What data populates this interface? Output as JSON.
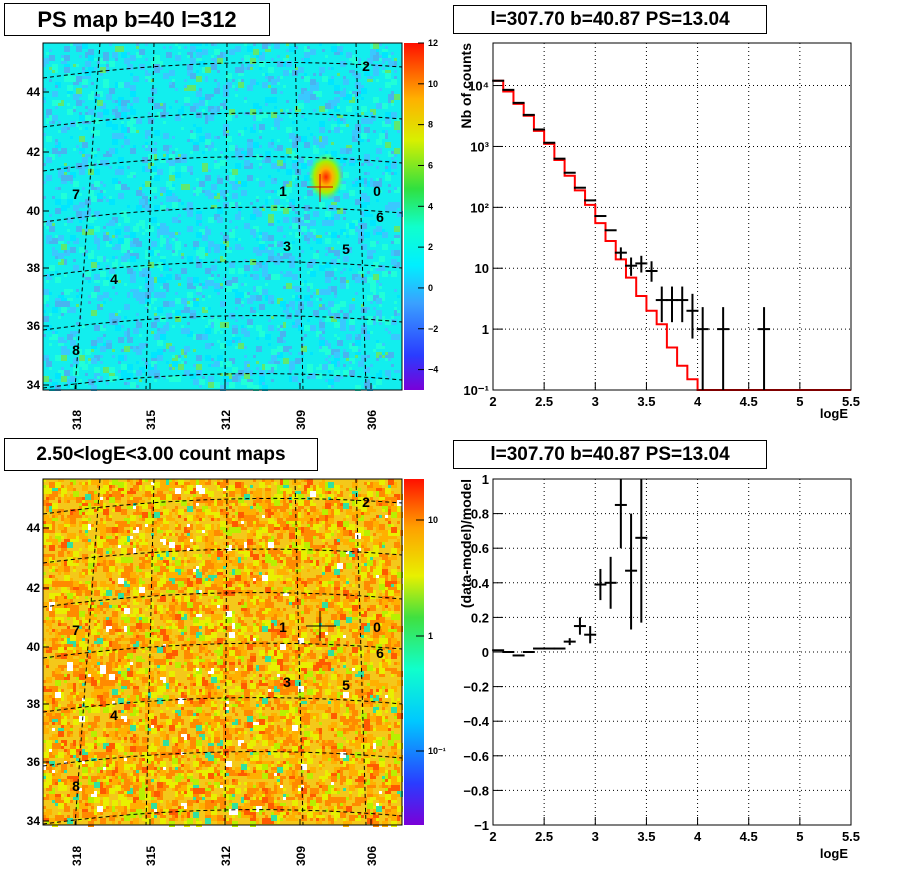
{
  "colors": {
    "model_line": "#ff0000",
    "data_points": "#000000",
    "grid": "#000000"
  },
  "panels": {
    "map_ps": {
      "title": "PS map b=40 l=312"
    },
    "spectrum": {
      "title": "l=307.70 b=40.87 PS=13.04"
    },
    "map_counts": {
      "title": "2.50<logE<3.00 count maps"
    },
    "residual": {
      "title": "l=307.70 b=40.87 PS=13.04"
    }
  },
  "map_axes": {
    "x_ticks": [
      "318",
      "315",
      "312",
      "309",
      "306"
    ],
    "y_ticks": [
      "44",
      "42",
      "40",
      "38",
      "36",
      "34"
    ]
  },
  "source_labels": [
    "0",
    "1",
    "2",
    "3",
    "4",
    "5",
    "6",
    "7",
    "8"
  ],
  "ps_colorbar": {
    "ticks": [
      "12",
      "10",
      "8",
      "6",
      "4",
      "2",
      "0",
      "−2",
      "−4"
    ],
    "range": [
      -5,
      12
    ]
  },
  "counts_colorbar": {
    "ticks": [
      "10",
      "1",
      "10⁻¹"
    ],
    "scale": "log"
  },
  "chart_data": [
    {
      "type": "line",
      "panel": "spectrum",
      "xlabel": "logE",
      "ylabel": "Nb of counts",
      "yscale": "log",
      "xlim": [
        2,
        5.5
      ],
      "ylim": [
        0.1,
        50000
      ],
      "x_tick_labels": [
        "2",
        "2.5",
        "3",
        "3.5",
        "4",
        "4.5",
        "5",
        "5.5"
      ],
      "y_tick_labels": [
        "10⁴",
        "10³",
        "10²",
        "10",
        "1",
        "10⁻¹"
      ],
      "grid": true,
      "series": [
        {
          "kind": "step",
          "x_edges": [
            2.0,
            2.1,
            2.2,
            2.3,
            2.4,
            2.5,
            2.6,
            2.7,
            2.8,
            2.9,
            3.0,
            3.1,
            3.2,
            3.3,
            3.4,
            3.5,
            3.6,
            3.7,
            3.8,
            3.9,
            4.0,
            4.1,
            4.2,
            4.3,
            4.4,
            4.5,
            4.6,
            4.7,
            4.8,
            4.9,
            5.0,
            5.1,
            5.2,
            5.3,
            5.4,
            5.5
          ],
          "values": [
            12000,
            8000,
            5000,
            3200,
            1800,
            1100,
            600,
            330,
            190,
            110,
            55,
            28,
            14,
            7,
            3.5,
            2.0,
            1.2,
            0.5,
            0.25,
            0.15,
            0.1,
            0.1,
            0.1,
            0.1,
            0.1,
            0.1,
            0.1,
            0.1,
            0.1,
            0.1,
            0.1,
            0.1,
            0.1,
            0.1,
            0.1
          ]
        },
        {
          "kind": "points",
          "x": [
            2.05,
            2.15,
            2.25,
            2.35,
            2.45,
            2.55,
            2.65,
            2.75,
            2.85,
            2.95,
            3.05,
            3.15,
            3.25,
            3.35,
            3.45,
            3.55,
            3.65,
            3.75,
            3.85,
            3.95,
            4.05,
            4.25,
            4.65
          ],
          "y": [
            12000,
            8500,
            5200,
            3300,
            1900,
            1150,
            630,
            370,
            210,
            130,
            72,
            42,
            18,
            11,
            12,
            9,
            3,
            3,
            3,
            2,
            1,
            1,
            1
          ],
          "y_low": [
            12000,
            8500,
            5200,
            3300,
            1900,
            1150,
            630,
            370,
            210,
            130,
            72,
            42,
            14,
            7.5,
            8.5,
            6,
            1.3,
            1.3,
            1.3,
            0.7,
            0.1,
            0.1,
            0.1
          ],
          "y_high": [
            12000,
            8500,
            5200,
            3300,
            1900,
            1150,
            630,
            370,
            210,
            130,
            72,
            42,
            22,
            15,
            16,
            13,
            5,
            5,
            5,
            3.8,
            2.3,
            2.3,
            2.3
          ]
        }
      ]
    },
    {
      "type": "scatter",
      "panel": "residual",
      "xlabel": "logE",
      "ylabel": "(data-model)/model",
      "xlim": [
        2,
        5.5
      ],
      "ylim": [
        -1,
        1
      ],
      "x_tick_labels": [
        "2",
        "2.5",
        "3",
        "3.5",
        "4",
        "4.5",
        "5",
        "5.5"
      ],
      "y_tick_labels": [
        "1",
        "0.8",
        "0.6",
        "0.4",
        "0.2",
        "0",
        "−0.2",
        "−0.4",
        "−0.6",
        "−0.8",
        "−1"
      ],
      "grid": true,
      "series": [
        {
          "x": [
            2.05,
            2.15,
            2.25,
            2.35,
            2.45,
            2.55,
            2.65,
            2.75,
            2.85,
            2.95,
            3.05,
            3.15,
            3.25,
            3.35,
            3.45
          ],
          "y": [
            0.01,
            0.0,
            -0.02,
            0.0,
            0.02,
            0.02,
            0.02,
            0.06,
            0.15,
            0.1,
            0.39,
            0.4,
            0.85,
            0.47,
            0.66
          ],
          "y_low": [
            0.01,
            0.0,
            -0.02,
            0.0,
            0.02,
            0.02,
            0.02,
            0.04,
            0.1,
            0.05,
            0.3,
            0.25,
            0.6,
            0.13,
            0.17
          ],
          "y_high": [
            0.01,
            0.0,
            -0.02,
            0.0,
            0.02,
            0.02,
            0.02,
            0.08,
            0.2,
            0.15,
            0.48,
            0.55,
            1.0,
            0.8,
            1.0
          ]
        }
      ]
    }
  ]
}
